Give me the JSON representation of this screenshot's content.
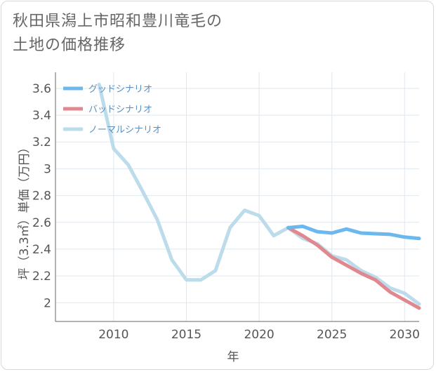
{
  "title_lines": [
    "秋田県潟上市昭和豊川竜毛の",
    "土地の価格推移"
  ],
  "chart_data": {
    "type": "line",
    "xlabel": "年",
    "ylabel": "坪（3.3㎡）単価（万円）",
    "xlim": [
      2006,
      2031
    ],
    "ylim": [
      1.86,
      3.72
    ],
    "x_ticks": [
      2010,
      2015,
      2020,
      2025,
      2030
    ],
    "y_ticks": [
      2,
      2.2,
      2.4,
      2.6,
      2.8,
      3,
      3.2,
      3.4,
      3.6
    ],
    "grid": true,
    "legend_position": "top-left",
    "series": [
      {
        "name": "グッドシナリオ",
        "color": "#6cb8ee",
        "x": [
          2022,
          2023,
          2024,
          2025,
          2026,
          2027,
          2028,
          2029,
          2030,
          2031
        ],
        "y": [
          2.56,
          2.57,
          2.53,
          2.52,
          2.55,
          2.52,
          2.515,
          2.51,
          2.49,
          2.48
        ]
      },
      {
        "name": "バッドシナリオ",
        "color": "#e0888e",
        "x": [
          2022,
          2023,
          2024,
          2025,
          2026,
          2027,
          2028,
          2029,
          2030,
          2031
        ],
        "y": [
          2.56,
          2.5,
          2.43,
          2.34,
          2.28,
          2.22,
          2.17,
          2.08,
          2.02,
          1.96
        ]
      },
      {
        "name": "ノーマルシナリオ",
        "color": "#bcdcec",
        "x": [
          2009,
          2010,
          2011,
          2012,
          2013,
          2014,
          2015,
          2016,
          2017,
          2018,
          2019,
          2020,
          2021,
          2022,
          2023,
          2024,
          2025,
          2026,
          2027,
          2028,
          2029,
          2030,
          2031
        ],
        "y": [
          3.63,
          3.15,
          3.03,
          2.83,
          2.62,
          2.32,
          2.17,
          2.17,
          2.24,
          2.56,
          2.69,
          2.65,
          2.5,
          2.56,
          2.48,
          2.44,
          2.35,
          2.32,
          2.24,
          2.19,
          2.11,
          2.07,
          1.99
        ]
      }
    ]
  }
}
